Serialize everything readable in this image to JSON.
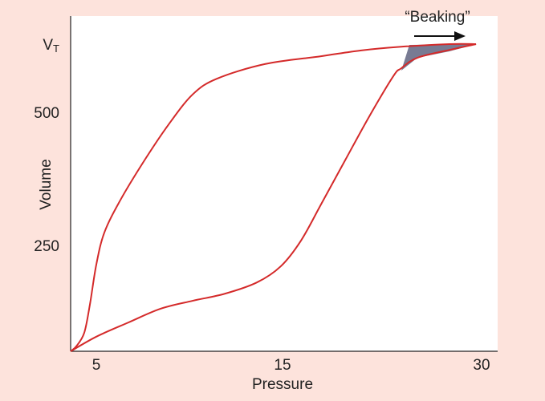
{
  "chart_data": {
    "type": "line",
    "xlabel": "Pressure",
    "ylabel": "Volume",
    "annotation": "“Beaking”",
    "xlim": [
      3.6,
      31.2
    ],
    "xticks": [
      5,
      15,
      30
    ],
    "ylim": [
      0,
      686
    ],
    "yticks": [
      250,
      500,
      {
        "value": 630,
        "label": "V",
        "label_sub": "T"
      }
    ],
    "series": [
      {
        "color": "#d42a2a",
        "x": [
          3.6,
          5,
          6.72,
          8.45,
          10.17,
          11.9,
          13.62,
          14.91,
          16.39,
          17.9,
          19.72,
          21.53,
          23.35,
          23.95,
          25.16,
          27.58,
          29.58
        ],
        "values": [
          0,
          35,
          69,
          102,
          121,
          138,
          165,
          204,
          262,
          330,
          413,
          495,
          572,
          587,
          607,
          622,
          633
        ]
      },
      {
        "color": "#d42a2a",
        "x": [
          29.58,
          27.58,
          23.95,
          20.93,
          17.9,
          14.05,
          11.47,
          10.17,
          8.88,
          7.59,
          6.29,
          5.43,
          5,
          4.65,
          4.34,
          3.91,
          3.6
        ],
        "values": [
          633,
          633,
          628,
          621,
          610,
          595,
          567,
          537,
          480,
          413,
          338,
          277,
          208,
          112,
          44,
          12,
          0
        ]
      }
    ]
  }
}
